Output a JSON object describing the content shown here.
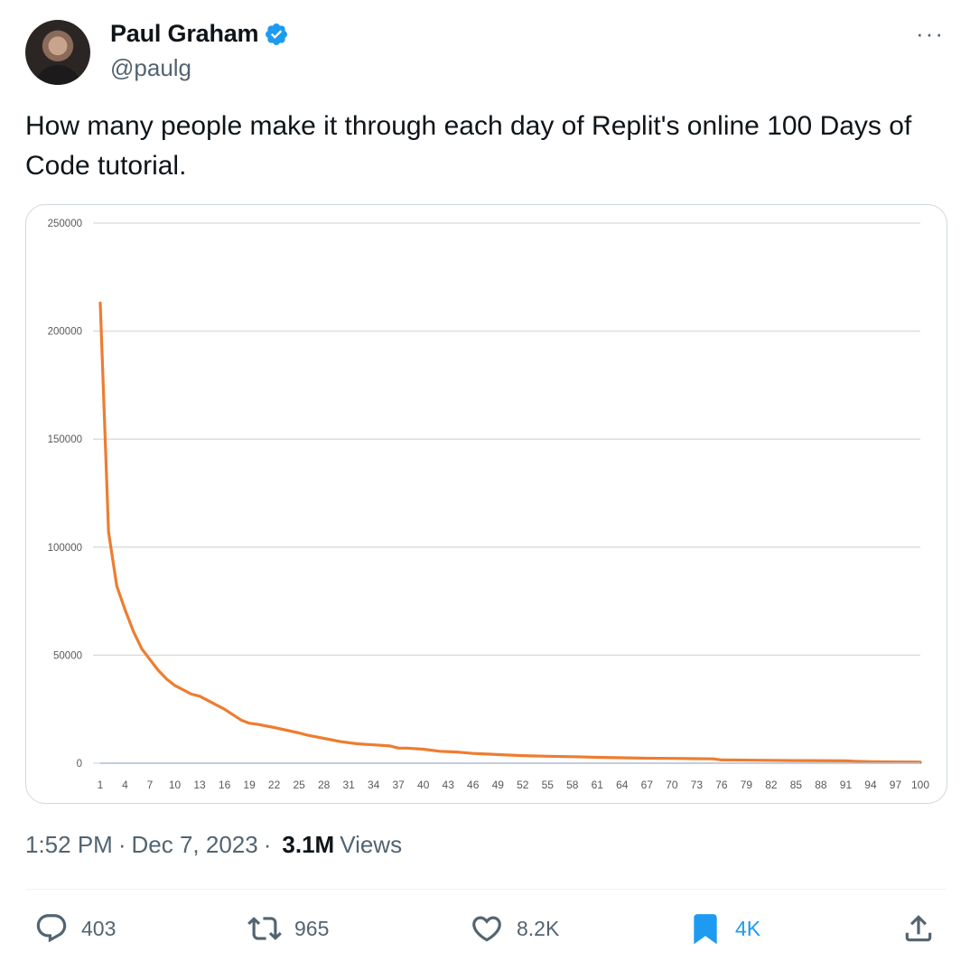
{
  "tweet": {
    "author_name": "Paul Graham",
    "author_handle": "@paulg",
    "more_label": "···",
    "text": "How many people make it through each day of Replit's online 100 Days of Code tutorial.",
    "time": "1:52 PM",
    "date": "Dec 7, 2023",
    "sep": "·",
    "views_count": "3.1M",
    "views_label": "Views",
    "colors": {
      "verified": "#1d9bf0",
      "bookmark_active": "#1d9bf0",
      "line": "#ed7d31"
    }
  },
  "actions": {
    "reply_count": "403",
    "retweet_count": "965",
    "like_count": "8.2K",
    "bookmark_count": "4K"
  },
  "chart_data": {
    "type": "line",
    "title": "",
    "xlabel": "",
    "ylabel": "",
    "ylim": [
      0,
      250000
    ],
    "yticks": [
      0,
      50000,
      100000,
      150000,
      200000,
      250000
    ],
    "ytick_labels": [
      "0",
      "50000",
      "100000",
      "150000",
      "200000",
      "250000"
    ],
    "xtick_labels": [
      "1",
      "4",
      "7",
      "10",
      "13",
      "16",
      "19",
      "22",
      "25",
      "28",
      "31",
      "34",
      "37",
      "40",
      "43",
      "46",
      "49",
      "52",
      "55",
      "58",
      "61",
      "64",
      "67",
      "70",
      "73",
      "76",
      "79",
      "82",
      "85",
      "88",
      "91",
      "94",
      "97",
      "100"
    ],
    "grid": true,
    "series": [
      {
        "color": "#ed7d31",
        "x": [
          1,
          2,
          3,
          4,
          5,
          6,
          7,
          8,
          9,
          10,
          12,
          13,
          14,
          15,
          16,
          17,
          18,
          19,
          20,
          22,
          25,
          26,
          28,
          30,
          32,
          34,
          36,
          37,
          38,
          40,
          42,
          44,
          46,
          48,
          50,
          52,
          55,
          58,
          61,
          64,
          67,
          70,
          73,
          75,
          76,
          80,
          85,
          91,
          92,
          94,
          97,
          100
        ],
        "y": [
          213000,
          107000,
          82000,
          71000,
          61000,
          53000,
          48000,
          43000,
          39000,
          36000,
          32000,
          31000,
          29000,
          27000,
          25000,
          22500,
          20000,
          18500,
          18000,
          16500,
          14000,
          13000,
          11500,
          10000,
          9000,
          8500,
          8000,
          7000,
          7000,
          6500,
          5500,
          5200,
          4500,
          4200,
          3800,
          3500,
          3200,
          3000,
          2700,
          2500,
          2300,
          2200,
          2100,
          2000,
          1500,
          1400,
          1200,
          1100,
          900,
          700,
          600,
          500
        ]
      },
      {
        "color": "#4472c4",
        "x": [
          1,
          100
        ],
        "y": [
          0,
          0
        ]
      }
    ]
  }
}
